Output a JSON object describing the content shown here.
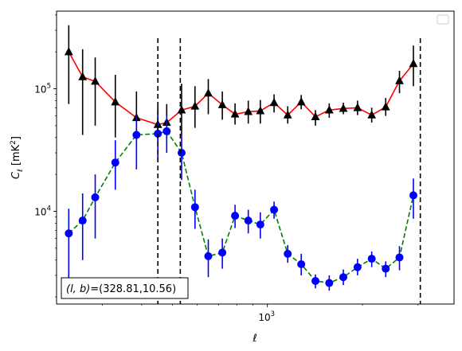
{
  "chart_data": {
    "type": "line",
    "xlabel": "ℓ",
    "ylabel_main": "C",
    "ylabel_sub": "ℓ",
    "ylabel_unit": "[mK",
    "ylabel_unit_sup": "2",
    "ylabel_unit_end": "]",
    "xscale": "log",
    "yscale": "log",
    "xlim": [
      215,
      3900
    ],
    "ylim": [
      1750,
      430000
    ],
    "x_major_ticks": [
      {
        "value": 1000,
        "base": "10",
        "exp": "3"
      }
    ],
    "y_major_ticks": [
      {
        "value": 10000,
        "base": "10",
        "exp": "4"
      },
      {
        "value": 100000,
        "base": "10",
        "exp": "5"
      }
    ],
    "annotation": {
      "prefix": "(l, b)",
      "text": "=(328.81,10.56)"
    },
    "legend": {
      "placement": "top-right",
      "entries": []
    },
    "vlines": [
      {
        "x": 450
      },
      {
        "x": 530
      },
      {
        "x": 3050
      }
    ],
    "series": [
      {
        "line_color": "#ff0000",
        "marker_color": "#000000",
        "errorbar_color": "#000000",
        "marker": "triangle",
        "line_style": "solid",
        "points": [
          {
            "x": 235,
            "y": 200000,
            "lo": 75000,
            "hi": 330000
          },
          {
            "x": 260,
            "y": 125000,
            "lo": 42000,
            "hi": 210000
          },
          {
            "x": 285,
            "y": 115000,
            "lo": 50000,
            "hi": 180000
          },
          {
            "x": 330,
            "y": 78000,
            "lo": 40000,
            "hi": 130000
          },
          {
            "x": 385,
            "y": 58000,
            "lo": 38000,
            "hi": 95000
          },
          {
            "x": 450,
            "y": 51000,
            "lo": 36000,
            "hi": 72000
          },
          {
            "x": 480,
            "y": 53000,
            "lo": 40000,
            "hi": 75000
          },
          {
            "x": 535,
            "y": 67000,
            "lo": 42000,
            "hi": 110000
          },
          {
            "x": 590,
            "y": 72000,
            "lo": 48000,
            "hi": 105000
          },
          {
            "x": 650,
            "y": 92000,
            "lo": 62000,
            "hi": 120000
          },
          {
            "x": 720,
            "y": 74000,
            "lo": 56000,
            "hi": 95000
          },
          {
            "x": 790,
            "y": 62000,
            "lo": 51000,
            "hi": 76000
          },
          {
            "x": 870,
            "y": 65000,
            "lo": 52000,
            "hi": 80000
          },
          {
            "x": 950,
            "y": 66000,
            "lo": 52000,
            "hi": 81000
          },
          {
            "x": 1050,
            "y": 77000,
            "lo": 64000,
            "hi": 90000
          },
          {
            "x": 1160,
            "y": 61000,
            "lo": 52000,
            "hi": 72000
          },
          {
            "x": 1280,
            "y": 78000,
            "lo": 68000,
            "hi": 89000
          },
          {
            "x": 1420,
            "y": 59000,
            "lo": 50000,
            "hi": 67000
          },
          {
            "x": 1570,
            "y": 67000,
            "lo": 58000,
            "hi": 76000
          },
          {
            "x": 1740,
            "y": 69000,
            "lo": 62000,
            "hi": 77000
          },
          {
            "x": 1930,
            "y": 70000,
            "lo": 61000,
            "hi": 80000
          },
          {
            "x": 2140,
            "y": 61000,
            "lo": 53000,
            "hi": 70000
          },
          {
            "x": 2370,
            "y": 71000,
            "lo": 60000,
            "hi": 84000
          },
          {
            "x": 2620,
            "y": 116000,
            "lo": 92000,
            "hi": 140000
          },
          {
            "x": 2900,
            "y": 160000,
            "lo": 105000,
            "hi": 225000
          }
        ]
      },
      {
        "line_color": "#008000",
        "marker_color": "#0000ff",
        "errorbar_color": "#0000ff",
        "marker": "circle",
        "line_style": "dashed",
        "points": [
          {
            "x": 235,
            "y": 6600,
            "lo": 2800,
            "hi": 10500
          },
          {
            "x": 260,
            "y": 8400,
            "lo": 4000,
            "hi": 14000
          },
          {
            "x": 285,
            "y": 13000,
            "lo": 6000,
            "hi": 20000
          },
          {
            "x": 330,
            "y": 25000,
            "lo": 15000,
            "hi": 38000
          },
          {
            "x": 385,
            "y": 42000,
            "lo": 22000,
            "hi": 60000
          },
          {
            "x": 450,
            "y": 43000,
            "lo": 26000,
            "hi": 61000
          },
          {
            "x": 480,
            "y": 45000,
            "lo": 30000,
            "hi": 60000
          },
          {
            "x": 535,
            "y": 30000,
            "lo": 18000,
            "hi": 42000
          },
          {
            "x": 590,
            "y": 10800,
            "lo": 7200,
            "hi": 15000
          },
          {
            "x": 650,
            "y": 4300,
            "lo": 2900,
            "hi": 5900
          },
          {
            "x": 720,
            "y": 4600,
            "lo": 3400,
            "hi": 6000
          },
          {
            "x": 790,
            "y": 9200,
            "lo": 7300,
            "hi": 11300
          },
          {
            "x": 870,
            "y": 8400,
            "lo": 6600,
            "hi": 10300
          },
          {
            "x": 950,
            "y": 7800,
            "lo": 6000,
            "hi": 9800
          },
          {
            "x": 1050,
            "y": 10300,
            "lo": 8700,
            "hi": 12000
          },
          {
            "x": 1160,
            "y": 4500,
            "lo": 3800,
            "hi": 5300
          },
          {
            "x": 1280,
            "y": 3700,
            "lo": 3000,
            "hi": 4500
          },
          {
            "x": 1420,
            "y": 2700,
            "lo": 2350,
            "hi": 3050
          },
          {
            "x": 1570,
            "y": 2600,
            "lo": 2250,
            "hi": 3000
          },
          {
            "x": 1740,
            "y": 2900,
            "lo": 2500,
            "hi": 3350
          },
          {
            "x": 1930,
            "y": 3500,
            "lo": 3000,
            "hi": 4100
          },
          {
            "x": 2140,
            "y": 4100,
            "lo": 3500,
            "hi": 4700
          },
          {
            "x": 2370,
            "y": 3400,
            "lo": 2900,
            "hi": 3900
          },
          {
            "x": 2620,
            "y": 4200,
            "lo": 3300,
            "hi": 5200
          },
          {
            "x": 2900,
            "y": 13500,
            "lo": 8700,
            "hi": 18500
          }
        ]
      }
    ]
  }
}
